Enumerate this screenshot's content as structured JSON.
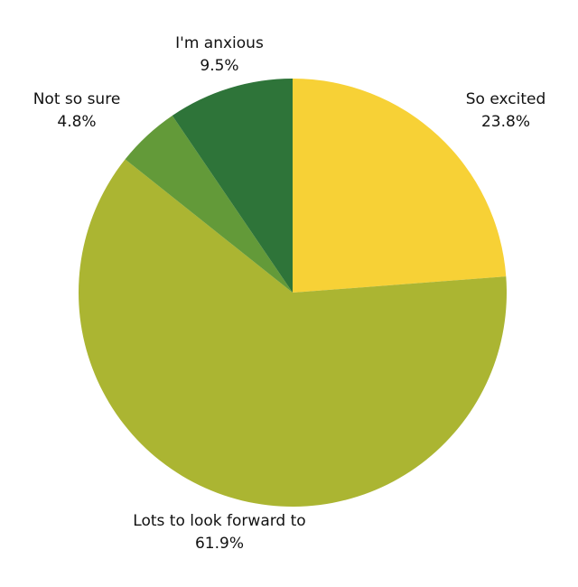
{
  "chart_data": {
    "type": "pie",
    "categories": [
      "So excited",
      "Lots to look forward to",
      "Not so sure",
      "I'm anxious"
    ],
    "values": [
      23.8,
      61.9,
      4.8,
      9.5
    ],
    "value_labels": [
      "23.8%",
      "61.9%",
      "4.8%",
      "9.5%"
    ],
    "colors": [
      "#f7d136",
      "#abb532",
      "#639a39",
      "#2e7439"
    ]
  }
}
